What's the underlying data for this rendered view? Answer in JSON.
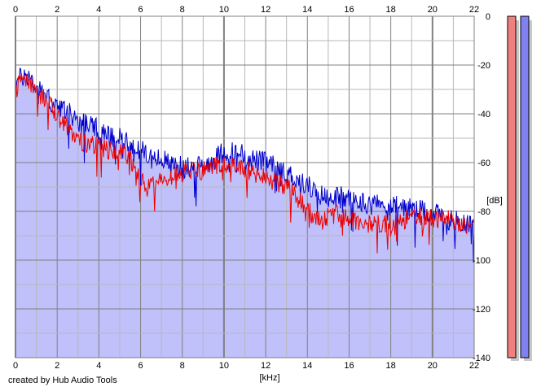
{
  "chart_data": {
    "type": "line",
    "xlabel": "[kHz]",
    "ylabel": "[dB]",
    "xlim": [
      0,
      22
    ],
    "ylim": [
      -140,
      0
    ],
    "x_ticks": [
      "0",
      "2",
      "4",
      "6",
      "8",
      "10",
      "12",
      "14",
      "16",
      "18",
      "20",
      "22"
    ],
    "y_ticks": [
      "0",
      "-20",
      "-40",
      "-60",
      "-80",
      "-100",
      "-120",
      "-140"
    ],
    "grid": true,
    "colors": {
      "fill": "#c0c0fa",
      "blue_series": "#0000cc",
      "red_series": "#ee0000",
      "grid_minor": "#b8b8b8",
      "grid_major": "#808080",
      "meter_left": "#f08080",
      "meter_right": "#8080f0"
    },
    "series": [
      {
        "color": "blue",
        "x": [
          0,
          0.3,
          0.6,
          1,
          1.5,
          2,
          2.5,
          3,
          3.5,
          4,
          4.5,
          5,
          5.5,
          6,
          6.5,
          7,
          7.5,
          8,
          8.5,
          9,
          9.5,
          10,
          10.5,
          11,
          11.5,
          12,
          12.5,
          13,
          13.5,
          14,
          14.5,
          15,
          15.5,
          16,
          16.5,
          17,
          17.5,
          18,
          18.5,
          19,
          19.5,
          20,
          20.5,
          21,
          21.5,
          22
        ],
        "y": [
          -27,
          -25,
          -24,
          -29,
          -33,
          -38,
          -39,
          -43,
          -44,
          -47,
          -49,
          -50,
          -52,
          -55,
          -58,
          -59,
          -60,
          -62,
          -62,
          -61,
          -59,
          -55,
          -56,
          -57,
          -59,
          -60,
          -62,
          -64,
          -67,
          -69,
          -73,
          -74,
          -74,
          -75,
          -76,
          -77,
          -77,
          -78,
          -78,
          -79,
          -80,
          -81,
          -82,
          -84,
          -84,
          -86
        ]
      },
      {
        "color": "red",
        "x": [
          0,
          0.3,
          0.6,
          1,
          1.5,
          2,
          2.5,
          3,
          3.5,
          4,
          4.5,
          5,
          5.5,
          6,
          6.5,
          7,
          7.5,
          8,
          8.5,
          9,
          9.5,
          10,
          10.5,
          11,
          11.5,
          12,
          12.5,
          13,
          13.5,
          14,
          14.5,
          15,
          15.5,
          16,
          16.5,
          17,
          17.5,
          18,
          18.5,
          19,
          19.5,
          20,
          20.5,
          21,
          21.5,
          22
        ],
        "y": [
          -30,
          -27,
          -26,
          -31,
          -35,
          -40,
          -45,
          -50,
          -53,
          -53,
          -55,
          -55,
          -59,
          -68,
          -68,
          -68,
          -66,
          -64,
          -64,
          -63,
          -62,
          -60,
          -61,
          -63,
          -65,
          -66,
          -68,
          -70,
          -74,
          -80,
          -83,
          -82,
          -81,
          -83,
          -84,
          -86,
          -85,
          -85,
          -84,
          -83,
          -82,
          -82,
          -83,
          -84,
          -85,
          -86
        ]
      }
    ],
    "meters": {
      "left_level": -140,
      "right_level": -140
    }
  },
  "footer": {
    "credit": "created by Hub Audio Tools"
  }
}
